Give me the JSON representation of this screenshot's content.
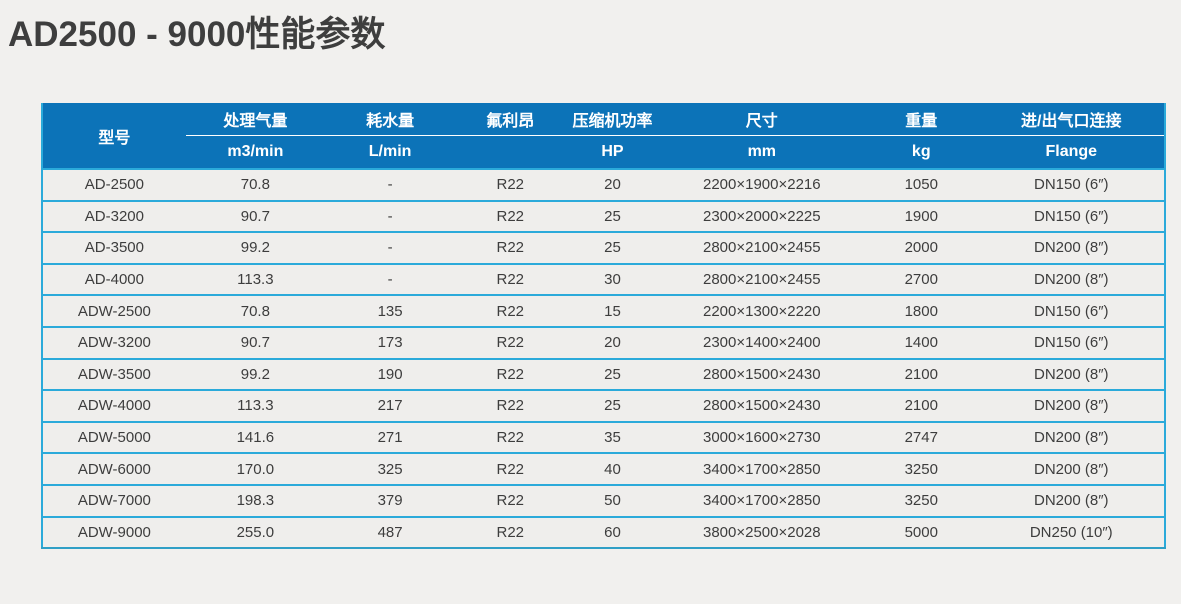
{
  "page": {
    "title": "AD2500 - 9000性能参数"
  },
  "table": {
    "columns": [
      {
        "label": "型号",
        "unit": ""
      },
      {
        "label": "处理气量",
        "unit": "m3/min"
      },
      {
        "label": "耗水量",
        "unit": "L/min"
      },
      {
        "label": "氟利昂",
        "unit": ""
      },
      {
        "label": "压缩机功率",
        "unit": "HP"
      },
      {
        "label": "尺寸",
        "unit": "mm"
      },
      {
        "label": "重量",
        "unit": "kg"
      },
      {
        "label": "进/出气口连接",
        "unit": "Flange"
      }
    ],
    "rows": [
      [
        "AD-2500",
        "70.8",
        "-",
        "R22",
        "20",
        "2200×1900×2216",
        "1050",
        "DN150 (6″)"
      ],
      [
        "AD-3200",
        "90.7",
        "-",
        "R22",
        "25",
        "2300×2000×2225",
        "1900",
        "DN150 (6″)"
      ],
      [
        "AD-3500",
        "99.2",
        "-",
        "R22",
        "25",
        "2800×2100×2455",
        "2000",
        "DN200 (8″)"
      ],
      [
        "AD-4000",
        "113.3",
        "-",
        "R22",
        "30",
        "2800×2100×2455",
        "2700",
        "DN200 (8″)"
      ],
      [
        "ADW-2500",
        "70.8",
        "135",
        "R22",
        "15",
        "2200×1300×2220",
        "1800",
        "DN150 (6″)"
      ],
      [
        "ADW-3200",
        "90.7",
        "173",
        "R22",
        "20",
        "2300×1400×2400",
        "1400",
        "DN150 (6″)"
      ],
      [
        "ADW-3500",
        "99.2",
        "190",
        "R22",
        "25",
        "2800×1500×2430",
        "2100",
        "DN200 (8″)"
      ],
      [
        "ADW-4000",
        "113.3",
        "217",
        "R22",
        "25",
        "2800×1500×2430",
        "2100",
        "DN200 (8″)"
      ],
      [
        "ADW-5000",
        "141.6",
        "271",
        "R22",
        "35",
        "3000×1600×2730",
        "2747",
        "DN200 (8″)"
      ],
      [
        "ADW-6000",
        "170.0",
        "325",
        "R22",
        "40",
        "3400×1700×2850",
        "3250",
        "DN200 (8″)"
      ],
      [
        "ADW-7000",
        "198.3",
        "379",
        "R22",
        "50",
        "3400×1700×2850",
        "3250",
        "DN200 (8″)"
      ],
      [
        "ADW-9000",
        "255.0",
        "487",
        "R22",
        "60",
        "3800×2500×2028",
        "5000",
        "DN250 (10″)"
      ]
    ]
  },
  "colors": {
    "header_bg": "#0c73b8",
    "grid_line": "#2baada",
    "row_bg": "#efeeec",
    "page_bg": "#f1f0ee",
    "header_text": "#ffffff",
    "body_text": "#3d3d3d",
    "title_text": "#3e3e3e"
  }
}
